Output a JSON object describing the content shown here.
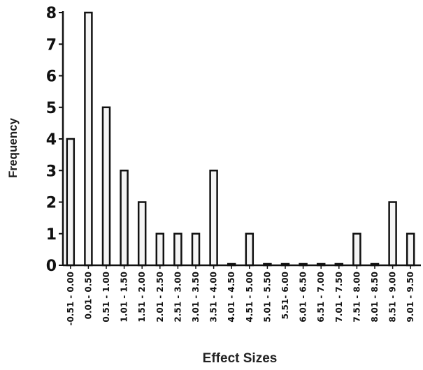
{
  "chart_data": {
    "type": "bar",
    "xlabel": "Effect Sizes",
    "ylabel": "Frequency",
    "ylim": [
      0,
      8
    ],
    "yticks": [
      0,
      1,
      2,
      3,
      4,
      5,
      6,
      7,
      8
    ],
    "grid": false,
    "legend": "none",
    "categories": [
      "-0.51 - 0.00",
      "0.01- 0.50",
      "0.51 - 1.00",
      "1.01 - 1.50",
      "1.51 - 2.00",
      "2.01 - 2.50",
      "2.51 - 3.00",
      "3.01 - 3.50",
      "3.51 - 4.00",
      "4.01 - 4.50",
      "4.51 - 5.00",
      "5.01 - 5.50",
      "5.51- 6.00",
      "6.01 - 6.50",
      "6.51 - 7.00",
      "7.01 - 7.50",
      "7.51 - 8.00",
      "8.01 - 8.50",
      "8.51 - 9.00",
      "9.01 - 9.50"
    ],
    "values": [
      4,
      8,
      5,
      3,
      2,
      1,
      1,
      1,
      3,
      0,
      1,
      0,
      0,
      0,
      0,
      0,
      1,
      0,
      2,
      1
    ],
    "bar_color": "#f4f4f4",
    "bar_edge_color": "#111111"
  }
}
